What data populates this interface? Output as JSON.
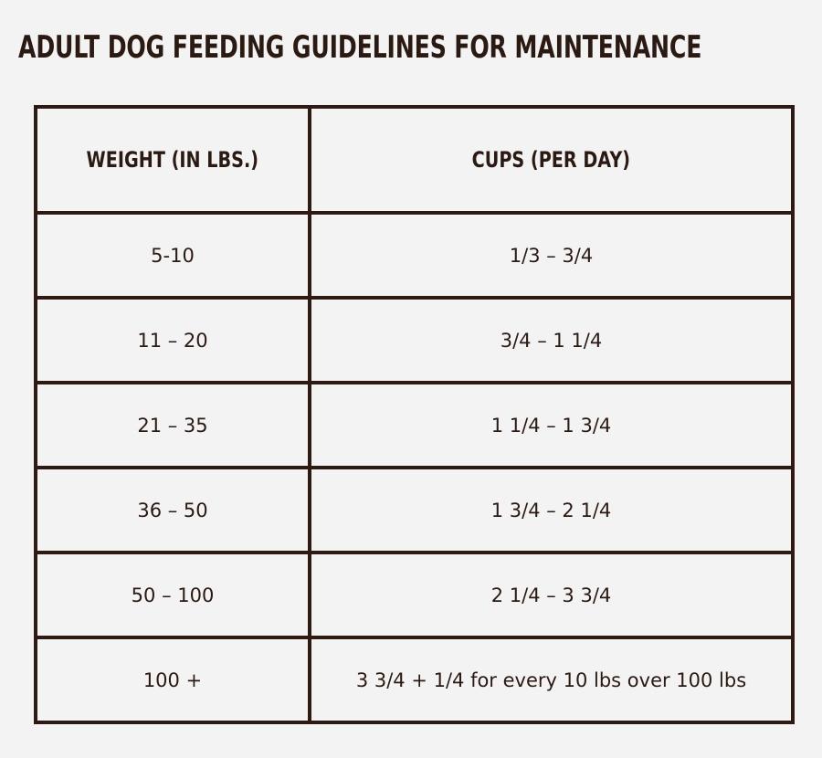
{
  "title": "ADULT DOG FEEDING GUIDELINES FOR MAINTENANCE",
  "table": {
    "headers": [
      "WEIGHT (IN LBS.)",
      "CUPS (PER DAY)"
    ],
    "rows": [
      [
        "5-10",
        "1/3 – 3/4"
      ],
      [
        "11 – 20",
        "3/4 – 1 1/4"
      ],
      [
        "21 – 35",
        "1 1/4 – 1 3/4"
      ],
      [
        "36 – 50",
        "1 3/4 – 2 1/4"
      ],
      [
        "50 – 100",
        "2 1/4 – 3 3/4"
      ],
      [
        "100 +",
        "3 3/4 + 1/4 for every 10 lbs over 100 lbs"
      ]
    ]
  },
  "colors": {
    "background": "#f3f3f3",
    "text": "#2b1a12",
    "border": "#2e1a12"
  }
}
